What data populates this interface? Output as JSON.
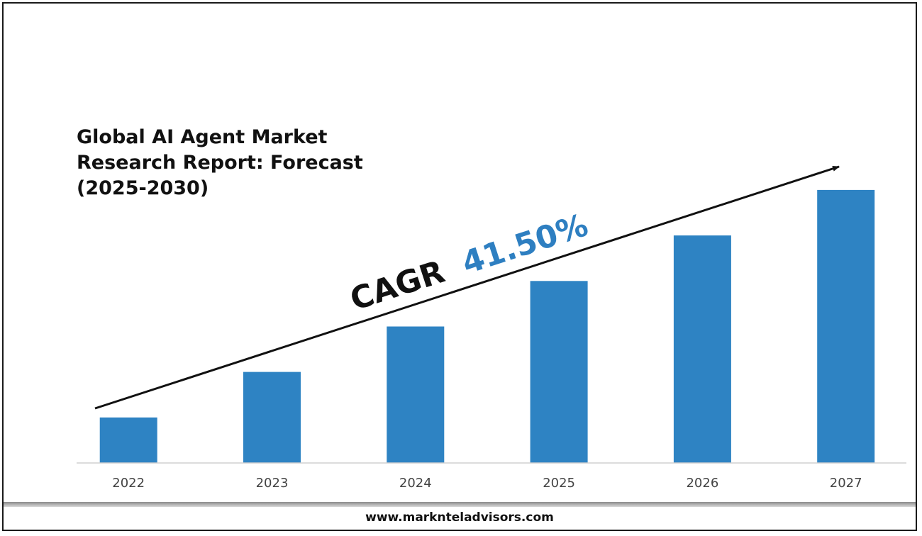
{
  "title": "Global AI Agent Market\nResearch Report: Forecast\n(2025-2030)",
  "cagr_label": "CAGR",
  "cagr_value": "41.50%",
  "footer_url": "www.marknteladvisors.com",
  "colors": {
    "bar": "#2e83c3",
    "cagr_value": "#2e7fc1",
    "text": "#111111"
  },
  "chart_data": {
    "type": "bar",
    "categories": [
      "2022",
      "2023",
      "2024",
      "2025",
      "2026",
      "2027"
    ],
    "values": [
      1.0,
      2.0,
      3.0,
      4.0,
      5.0,
      6.0
    ],
    "title": "Global AI Agent Market Research Report: Forecast (2025-2030)",
    "xlabel": "",
    "ylabel": "",
    "ylim": [
      0,
      6.03
    ],
    "grid": false,
    "legend": "none",
    "trend_annotation": "CAGR 41.50%"
  }
}
